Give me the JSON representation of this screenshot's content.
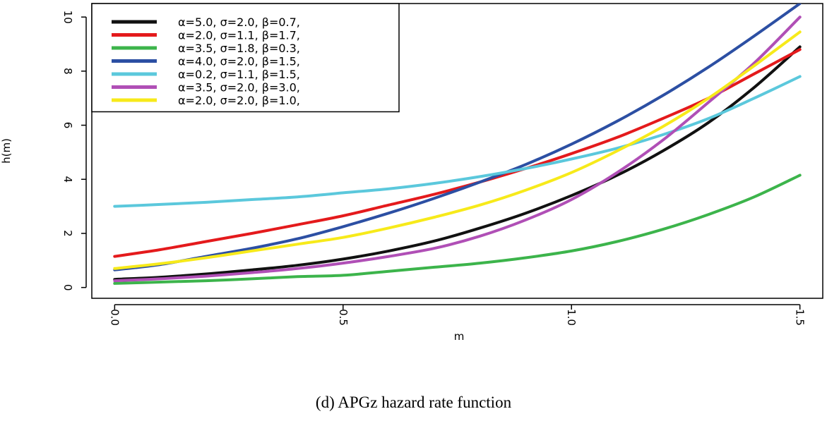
{
  "caption": "(d)  APGz hazard rate function",
  "chart_data": {
    "type": "line",
    "xlabel": "m",
    "ylabel": "h(m)",
    "xlim": [
      -0.05,
      1.55
    ],
    "ylim": [
      -0.4,
      10.5
    ],
    "x_ticks": [
      0.0,
      0.5,
      1.0,
      1.5
    ],
    "x_tick_labels": [
      "0.0",
      "0.5",
      "1.0",
      "1.5"
    ],
    "y_ticks": [
      0,
      2,
      4,
      6,
      8,
      10
    ],
    "y_tick_labels": [
      "0",
      "2",
      "4",
      "6",
      "8",
      "10"
    ],
    "grid": false,
    "legend_position": "top-left",
    "x": [
      0.0,
      0.1,
      0.2,
      0.3,
      0.4,
      0.5,
      0.6,
      0.7,
      0.8,
      0.9,
      1.0,
      1.1,
      1.2,
      1.3,
      1.4,
      1.5
    ],
    "series": [
      {
        "name": "α=5.0, σ=2.0, β=0.7,",
        "color": "#111111",
        "values": [
          0.3,
          0.38,
          0.5,
          0.65,
          0.82,
          1.05,
          1.35,
          1.72,
          2.2,
          2.75,
          3.4,
          4.15,
          5.05,
          6.1,
          7.4,
          8.9
        ]
      },
      {
        "name": "α=2.0, σ=1.1, β=1.7,",
        "color": "#e41a1c",
        "values": [
          1.15,
          1.4,
          1.7,
          2.0,
          2.32,
          2.65,
          3.05,
          3.45,
          3.9,
          4.4,
          4.95,
          5.55,
          6.25,
          7.0,
          7.9,
          8.8
        ]
      },
      {
        "name": "α=3.5, σ=1.8, β=0.3,",
        "color": "#3cb44b",
        "values": [
          0.15,
          0.2,
          0.25,
          0.32,
          0.4,
          0.45,
          0.6,
          0.75,
          0.9,
          1.1,
          1.35,
          1.7,
          2.15,
          2.7,
          3.35,
          4.15
        ]
      },
      {
        "name": "α=4.0, σ=2.0, β=1.5,",
        "color": "#2c4fa3",
        "values": [
          0.65,
          0.85,
          1.15,
          1.45,
          1.8,
          2.25,
          2.75,
          3.3,
          3.9,
          4.55,
          5.3,
          6.15,
          7.1,
          8.15,
          9.3,
          10.5
        ]
      },
      {
        "name": "α=0.2, σ=1.1, β=1.5,",
        "color": "#5bc8dc",
        "values": [
          3.0,
          3.07,
          3.15,
          3.25,
          3.35,
          3.5,
          3.65,
          3.85,
          4.1,
          4.4,
          4.75,
          5.15,
          5.65,
          6.25,
          7.0,
          7.8
        ]
      },
      {
        "name": "α=3.5, σ=2.0, β=3.0,",
        "color": "#b04fb6",
        "values": [
          0.25,
          0.32,
          0.42,
          0.55,
          0.7,
          0.9,
          1.15,
          1.45,
          1.9,
          2.5,
          3.25,
          4.25,
          5.45,
          6.85,
          8.3,
          10.0
        ]
      },
      {
        "name": "α=2.0, σ=2.0, β=1.0,",
        "color": "#f7ea1a",
        "values": [
          0.7,
          0.88,
          1.1,
          1.35,
          1.6,
          1.85,
          2.2,
          2.6,
          3.05,
          3.6,
          4.25,
          5.05,
          5.95,
          7.0,
          8.2,
          9.45
        ]
      }
    ]
  }
}
